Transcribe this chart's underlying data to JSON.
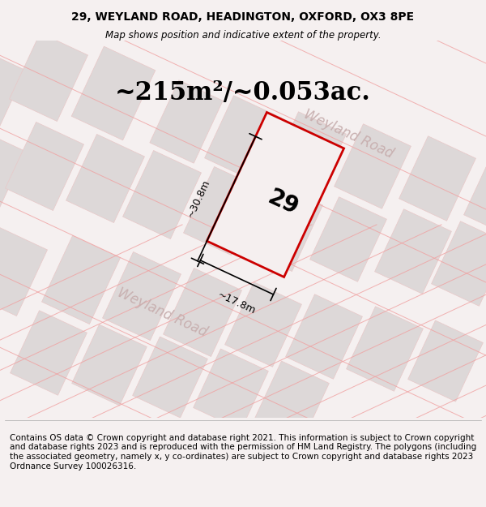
{
  "title_line1": "29, WEYLAND ROAD, HEADINGTON, OXFORD, OX3 8PE",
  "title_line2": "Map shows position and indicative extent of the property.",
  "area_text": "~215m²/~0.053ac.",
  "property_number": "29",
  "dim_width": "~17.8m",
  "dim_height": "~30.8m",
  "road_label": "Weyland Road",
  "footer_text": "Contains OS data © Crown copyright and database right 2021. This information is subject to Crown copyright and database rights 2023 and is reproduced with the permission of HM Land Registry. The polygons (including the associated geometry, namely x, y co-ordinates) are subject to Crown copyright and database rights 2023 Ordnance Survey 100026316.",
  "bg_color": "#f0eded",
  "map_bg": "#f5f0f0",
  "road_color": "#f0e0e0",
  "plot_fill": "#e8e0e0",
  "plot_border": "#cc0000",
  "grid_line_color": "#f0c0c0",
  "road_fill": "#e8d8d8",
  "title_fontsize": 10,
  "area_fontsize": 22,
  "footer_fontsize": 7.5
}
